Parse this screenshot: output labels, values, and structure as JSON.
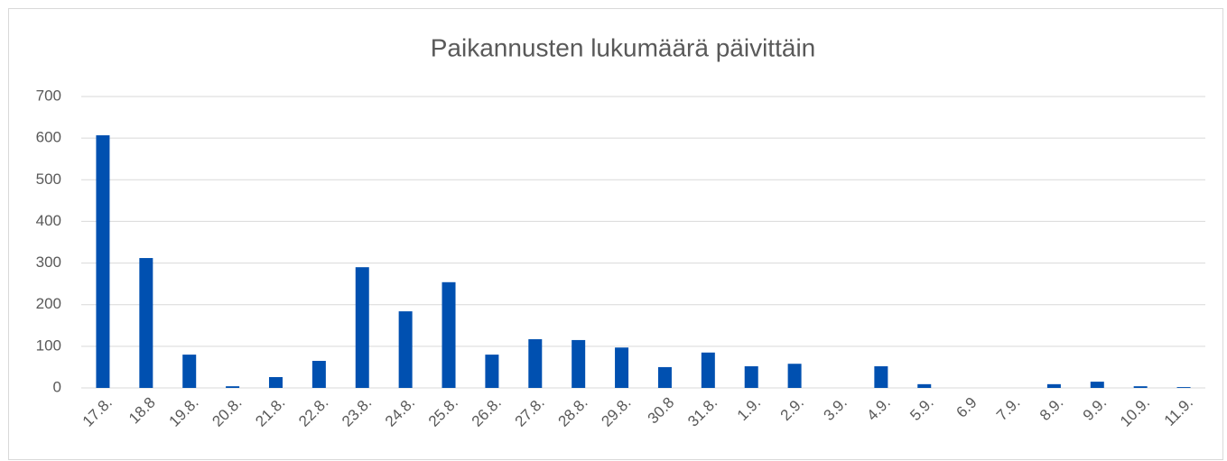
{
  "chart_data": {
    "type": "bar",
    "title": "Paikannusten lukumäärä päivittäin",
    "categories": [
      "17.8.",
      "18.8",
      "19.8.",
      "20.8.",
      "21.8.",
      "22.8.",
      "23.8.",
      "24.8.",
      "25.8.",
      "26.8.",
      "27.8.",
      "28.8.",
      "29.8.",
      "30.8",
      "31.8.",
      "1.9.",
      "2.9.",
      "3.9.",
      "4.9.",
      "5.9.",
      "6.9",
      "7.9.",
      "8.9.",
      "9.9.",
      "10.9.",
      "11.9."
    ],
    "values": [
      607,
      312,
      80,
      4,
      26,
      65,
      290,
      184,
      254,
      80,
      117,
      115,
      97,
      50,
      85,
      52,
      58,
      0,
      52,
      9,
      0,
      0,
      9,
      15,
      4,
      2
    ],
    "color": "#0050b0",
    "ylim": [
      0,
      700
    ],
    "yticks": [
      0,
      100,
      200,
      300,
      400,
      500,
      600,
      700
    ],
    "grid": true
  }
}
